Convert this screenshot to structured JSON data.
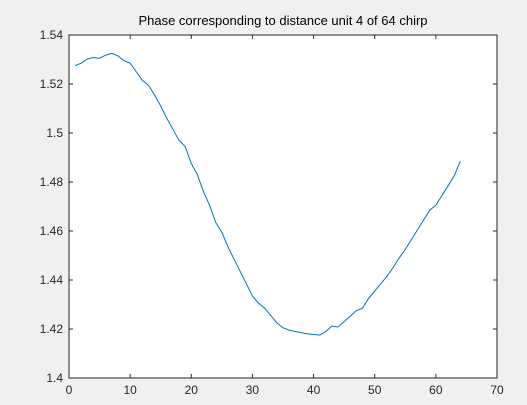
{
  "chart_data": {
    "type": "line",
    "title": "Phase corresponding to distance unit 4 of 64 chirp",
    "xlabel": "",
    "ylabel": "",
    "xlim": [
      0,
      70
    ],
    "ylim": [
      1.4,
      1.54
    ],
    "xticks": [
      0,
      10,
      20,
      30,
      40,
      50,
      60,
      70
    ],
    "xtick_labels": [
      "0",
      "10",
      "20",
      "30",
      "40",
      "50",
      "60",
      "70"
    ],
    "yticks": [
      1.4,
      1.42,
      1.44,
      1.46,
      1.48,
      1.5,
      1.52,
      1.54
    ],
    "ytick_labels": [
      "1.4",
      "1.42",
      "1.44",
      "1.46",
      "1.48",
      "1.5",
      "1.52",
      "1.54"
    ],
    "grid": false,
    "series": [
      {
        "color": "#0072bd",
        "x": [
          1,
          2,
          3,
          4,
          5,
          6,
          7,
          8,
          9,
          10,
          11,
          12,
          13,
          14,
          15,
          16,
          17,
          18,
          19,
          20,
          21,
          22,
          23,
          24,
          25,
          26,
          27,
          28,
          29,
          30,
          31,
          32,
          33,
          34,
          35,
          36,
          37,
          38,
          39,
          40,
          41,
          42,
          43,
          44,
          45,
          46,
          47,
          48,
          49,
          50,
          51,
          52,
          53,
          54,
          55,
          56,
          57,
          58,
          59,
          60,
          61,
          62,
          63,
          64
        ],
        "y": [
          1.5275,
          1.5285,
          1.5302,
          1.5308,
          1.5305,
          1.5318,
          1.5325,
          1.5315,
          1.5295,
          1.5285,
          1.525,
          1.5215,
          1.5195,
          1.5155,
          1.511,
          1.506,
          1.5015,
          1.497,
          1.4945,
          1.4875,
          1.483,
          1.476,
          1.4705,
          1.4635,
          1.4595,
          1.4535,
          1.4485,
          1.4435,
          1.4385,
          1.4335,
          1.4305,
          1.4285,
          1.4255,
          1.4225,
          1.4205,
          1.4195,
          1.419,
          1.4185,
          1.418,
          1.4178,
          1.4175,
          1.419,
          1.4212,
          1.4208,
          1.423,
          1.4252,
          1.4275,
          1.4285,
          1.4325,
          1.4355,
          1.4385,
          1.4415,
          1.445,
          1.449,
          1.4525,
          1.4565,
          1.4605,
          1.4645,
          1.4685,
          1.4705,
          1.4745,
          1.4785,
          1.4825,
          1.4885
        ]
      }
    ]
  }
}
